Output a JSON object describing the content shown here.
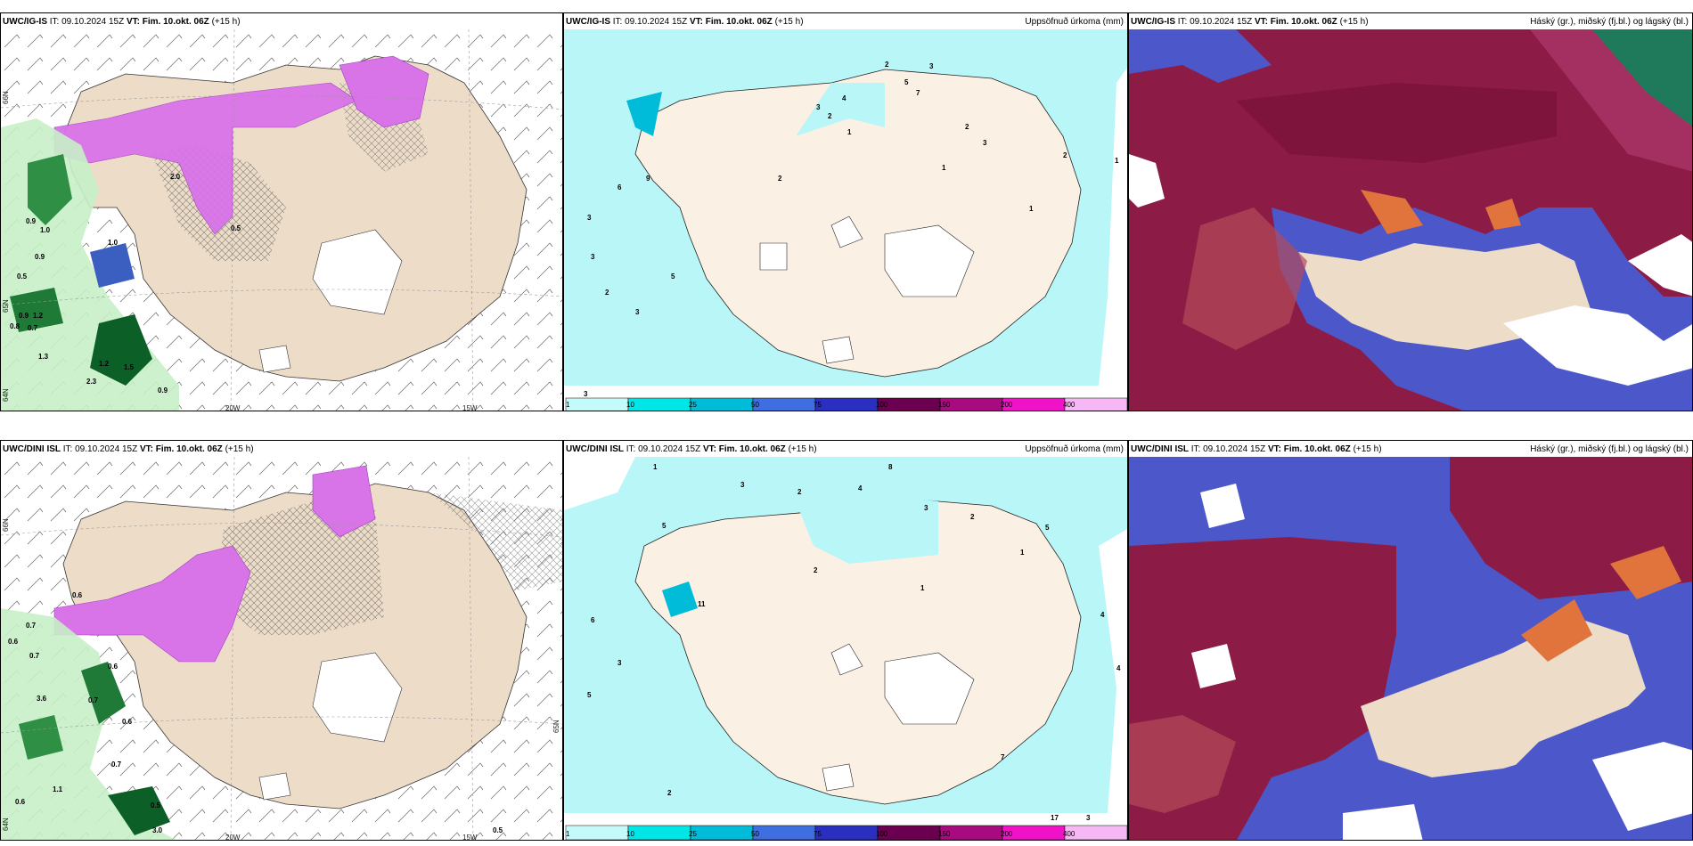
{
  "colors": {
    "land": "#ecdcc8",
    "land_precip": "#fbf0e4",
    "precip_light": "#b8f6f8",
    "purple": "#d873e8",
    "green_light": "#c7f0c6",
    "green_dark": "#0d5f28",
    "maroon": "#8c1b45",
    "blue": "#4c58c9",
    "orange": "#e0743c"
  },
  "rows": [
    {
      "model": "UWC/IG-IS",
      "issue": "IT: 09.10.2024 15Z",
      "valid_label": "VT:",
      "valid": "Fim. 10.okt. 06Z",
      "lead": "(+15 h)"
    },
    {
      "model": "UWC/DINI ISL",
      "issue": "IT: 09.10.2024 15Z",
      "valid_label": "VT:",
      "valid": "Fim. 10.okt. 06Z",
      "lead": "(+15 h)"
    }
  ],
  "precip_title": "Uppsöfnuð úrkoma (mm)",
  "cloud_title": "Háský (gr.), miðský (fj.bl.) og lágský (bl.)",
  "axis_labels": {
    "lon_20w": "20W",
    "lon_15w": "15W",
    "lat_66n": "66N",
    "lat_65n": "65N",
    "lat_64n": "64N"
  },
  "colorbar": {
    "ticks": [
      "1",
      "10",
      "25",
      "50",
      "75",
      "100",
      "150",
      "200",
      "400"
    ],
    "colors": [
      "#c4fafa",
      "#00e5e6",
      "#00bcd8",
      "#3f6ee0",
      "#2b2fc0",
      "#6b0050",
      "#a80a80",
      "#ef12c8",
      "#f6b8f4"
    ]
  },
  "left_numbers_top": [
    "0.9",
    "1.0",
    "0.9",
    "0.5",
    "0.9",
    "1.2",
    "0.8",
    "0.7",
    "1.3",
    "1.2",
    "1.5",
    "2.3",
    "0.9",
    "2.0",
    "1.0",
    "0.5"
  ],
  "left_numbers_bottom": [
    "0.6",
    "0.7",
    "0.6",
    "0.7",
    "0.6",
    "3.6",
    "0.7",
    "0.6",
    "0.7",
    "1.1",
    "0.6",
    "0.5",
    "3.0",
    "0.5"
  ],
  "mid_numbers_top": [
    "2",
    "5",
    "3",
    "7",
    "4",
    "3",
    "2",
    "1",
    "2",
    "3",
    "1",
    "6",
    "9",
    "2",
    "3",
    "5",
    "3",
    "2",
    "3",
    "3",
    "2",
    "1",
    "1"
  ],
  "mid_numbers_bottom": [
    "1",
    "3",
    "2",
    "4",
    "8",
    "3",
    "5",
    "11",
    "6",
    "2",
    "5",
    "3",
    "1",
    "2",
    "17",
    "3",
    "4",
    "7",
    "2",
    "1",
    "5",
    "4"
  ]
}
